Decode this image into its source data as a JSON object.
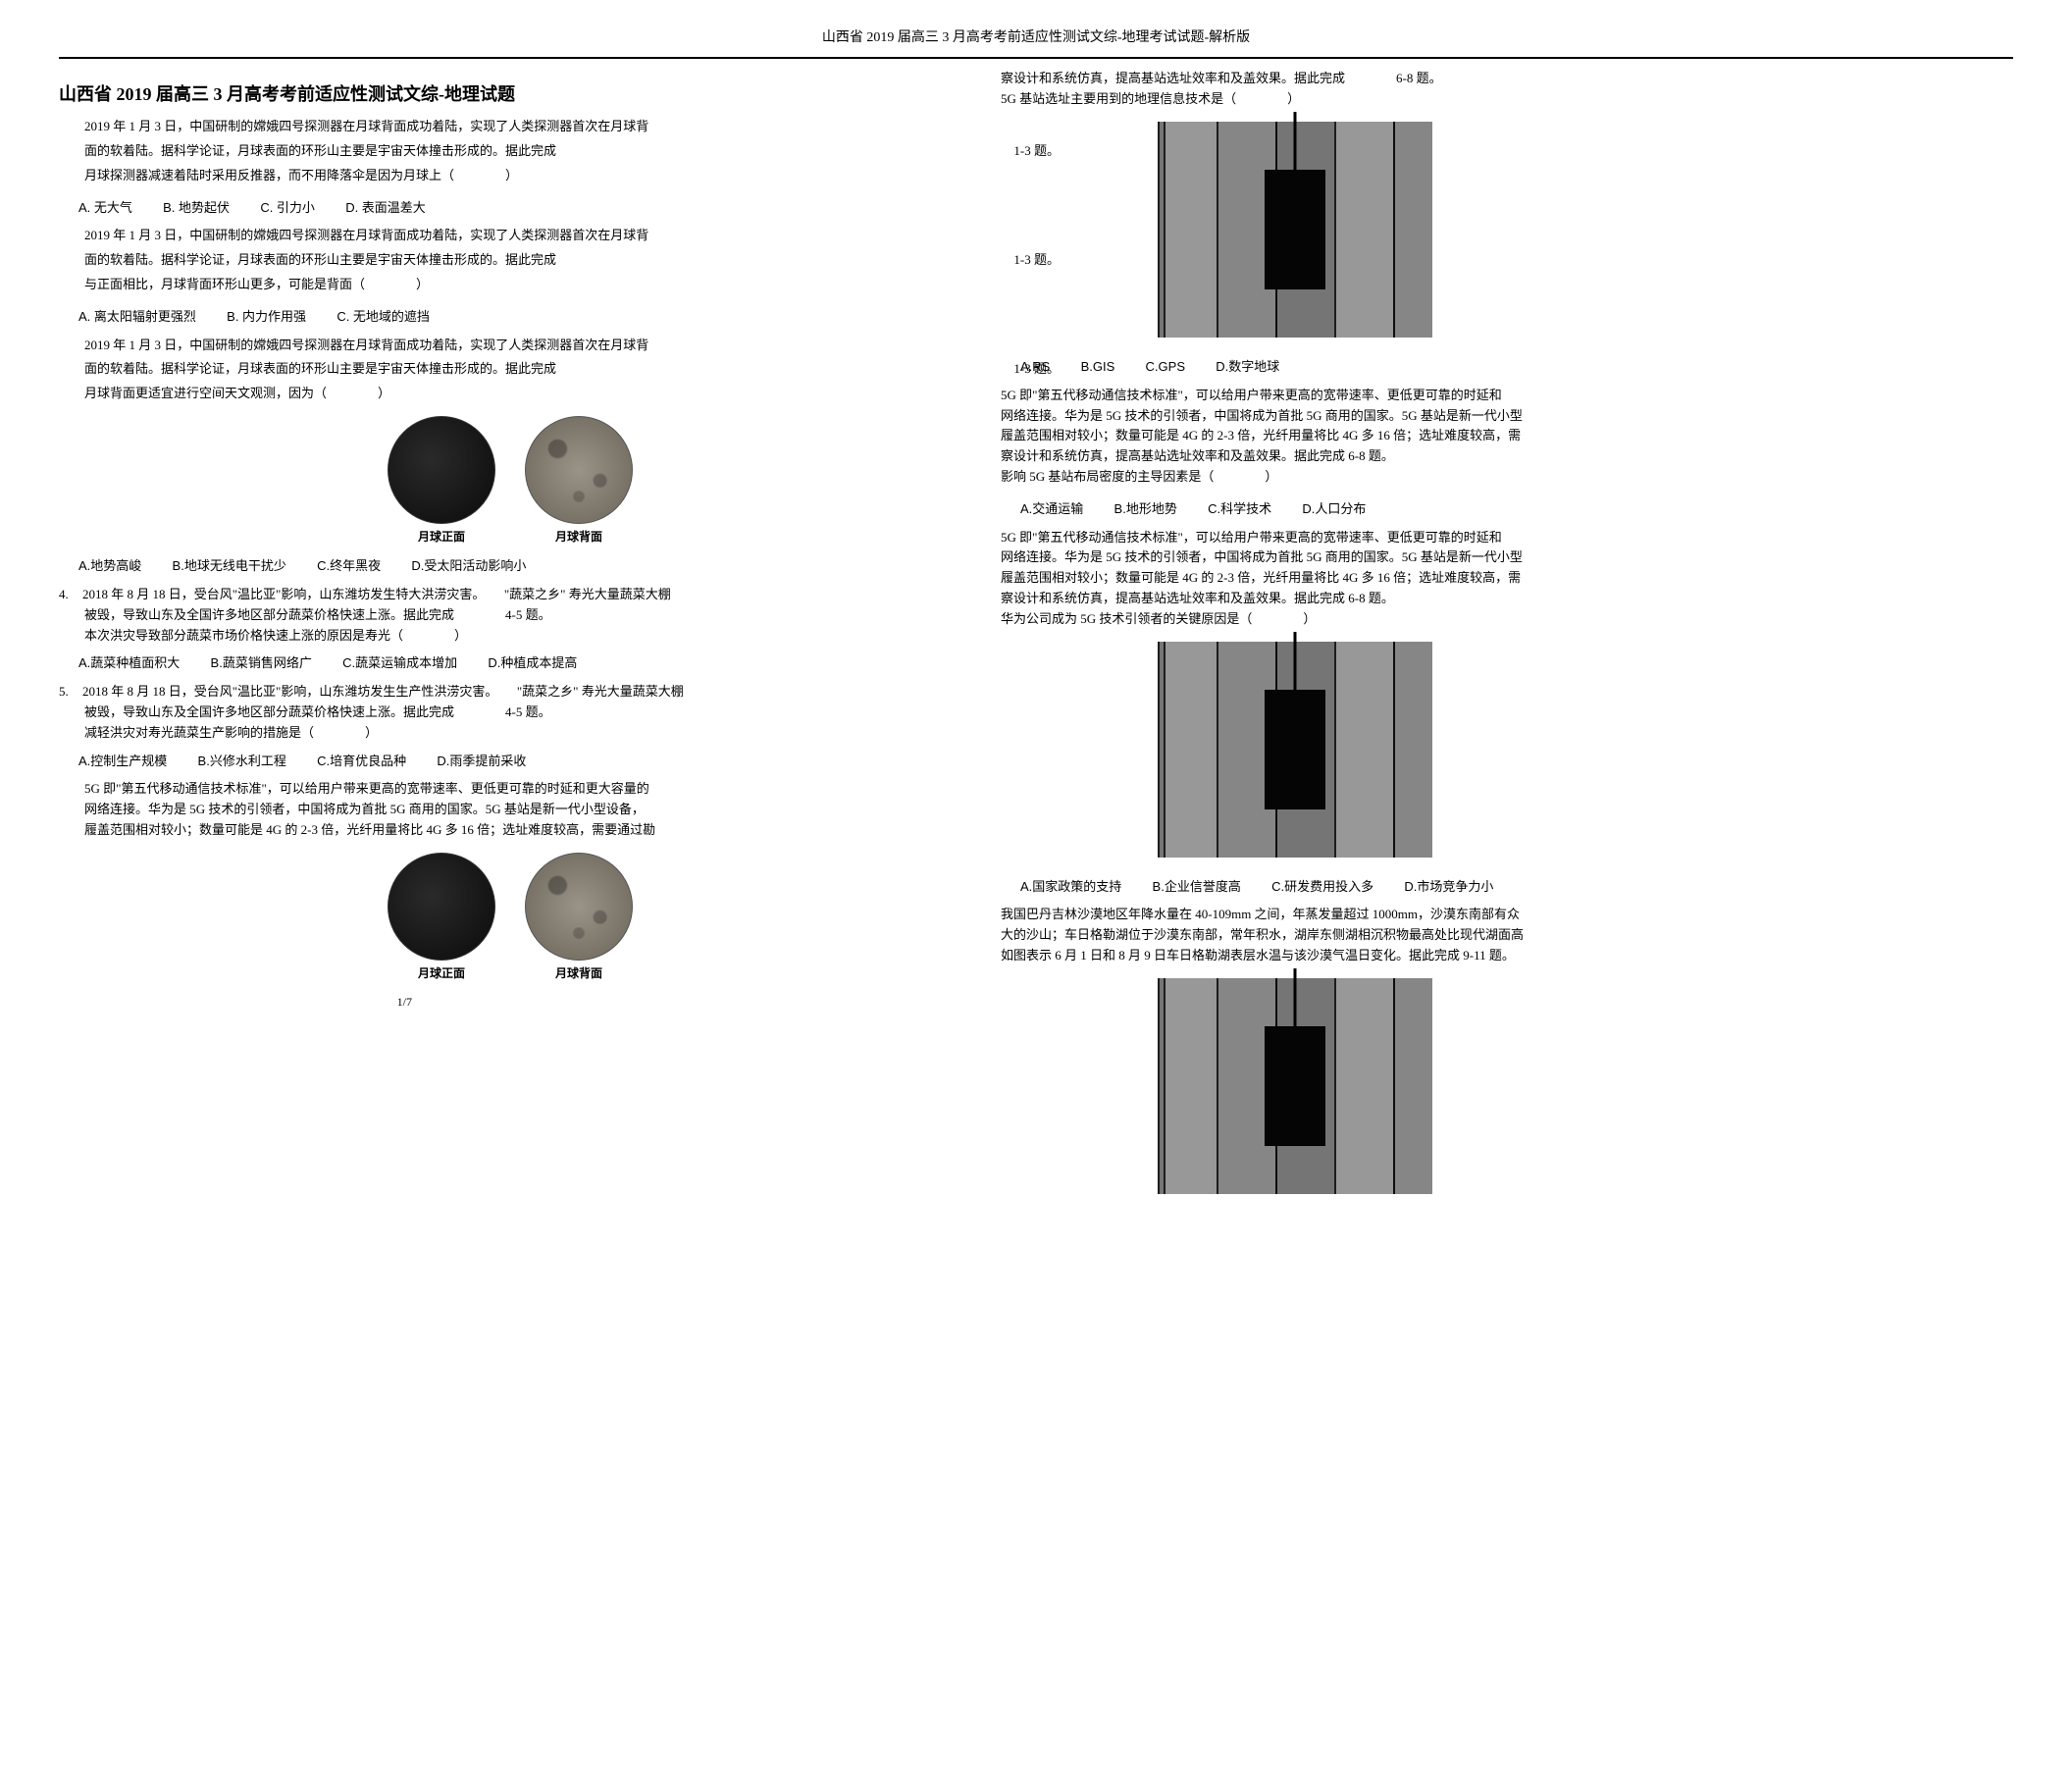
{
  "header": "山西省 2019 届高三 3 月高考考前适应性测试文综-地理考试试题-解析版",
  "title": "山西省 2019 届高三 3 月高考考前适应性测试文综-地理试题",
  "intro": {
    "line1": "2019 年 1 月 3 日，中国研制的嫦娥四号探测器在月球背面成功着陆，实现了人类探测器首次在月球背",
    "line2": "面的软着陆。据科学论证，月球表面的环形山主要是宇宙天体撞击形成的。据此完成",
    "line3": "月球探测器减速着陆时采用反推器，而不用降落伞是因为月球上（　　　　）",
    "range": "1-3 题。"
  },
  "q1opts": {
    "a": "A. 无大气",
    "b": "B. 地势起伏",
    "c": "C. 引力小",
    "d": "D. 表面温差大"
  },
  "q2": {
    "line1": "2019 年 1 月 3 日，中国研制的嫦娥四号探测器在月球背面成功着陆，实现了人类探测器首次在月球背",
    "line2": "面的软着陆。据科学论证，月球表面的环形山主要是宇宙天体撞击形成的。据此完成",
    "line3": "与正面相比，月球背面环形山更多，可能是背面（　　　　）",
    "range": "1-3 题。"
  },
  "q2opts": {
    "a": "A. 离太阳辐射更强烈",
    "b": "B. 内力作用强",
    "c": "C. 无地域的遮挡"
  },
  "q3": {
    "line1": "2019 年 1 月 3 日，中国研制的嫦娥四号探测器在月球背面成功着陆，实现了人类探测器首次在月球背",
    "line2": "面的软着陆。据科学论证，月球表面的环形山主要是宇宙天体撞击形成的。据此完成",
    "line3": "月球背面更适宜进行空间天文观测，因为（　　　　）",
    "range": "1-3 题。"
  },
  "q3opts": {
    "a": "A.地势高峻",
    "b": "B.地球无线电干扰少",
    "c": "C.终年黑夜",
    "d": "D.受太阳活动影响小"
  },
  "moon": {
    "front": "月球正面",
    "back": "月球背面"
  },
  "q4": {
    "n": "4.",
    "t1": "2018 年 8 月 18 日，受台风\"温比亚\"影响，山东潍坊发生特大洪涝灾害。　　\"蔬菜之乡\" 寿光大量蔬菜大棚",
    "t2": "被毁，导致山东及全国许多地区部分蔬菜价格快速上涨。据此完成　　　　4-5 题。",
    "t3": "本次洪灾导致部分蔬菜市场价格快速上涨的原因是寿光（　　　　）"
  },
  "q4opts": {
    "a": "A.蔬菜种植面积大",
    "b": "B.蔬菜销售网络广",
    "c": "C.蔬菜运输成本增加",
    "d": "D.种植成本提高"
  },
  "q5": {
    "n": "5.",
    "t1": "2018 年 8 月 18 日，受台风\"温比亚\"影响，山东潍坊发生生产性洪涝灾害。　　\"蔬菜之乡\" 寿光大量蔬菜大棚",
    "t2": "被毁，导致山东及全国许多地区部分蔬菜价格快速上涨。据此完成　　　　4-5 题。",
    "t3": "减轻洪灾对寿光蔬菜生产影响的措施是（　　　　）"
  },
  "q5opts": {
    "a": "A.控制生产规模",
    "b": "B.兴修水利工程",
    "c": "C.培育优良品种",
    "d": "D.雨季提前采收"
  },
  "fiveg": {
    "p1": "5G 即\"第五代移动通信技术标准\"，可以给用户带来更高的宽带速率、更低更可靠的时延和更大容量的",
    "p2": "网络连接。华为是 5G 技术的引领者，中国将成为首批 5G 商用的国家。5G 基站是新一代小型设备，",
    "p3": "履盖范围相对较小；数量可能是 4G 的 2-3 倍，光纤用量将比 4G 多 16 倍；选址难度较高，需要通过勘"
  },
  "pg": "1/7",
  "r1": {
    "l1": "察设计和系统仿真，提高基站选址效率和及盖效果。据此完成　　　　6-8 题。",
    "l2": "5G 基站选址主要用到的地理信息技术是（　　　　）"
  },
  "r1opts": {
    "a": "A.RS",
    "b": "B.GIS",
    "c": "C.GPS",
    "d": "D.数字地球"
  },
  "r2": {
    "l1": "5G 即\"第五代移动通信技术标准\"，可以给用户带来更高的宽带速率、更低更可靠的时延和",
    "l2": "网络连接。华为是 5G 技术的引领者，中国将成为首批 5G 商用的国家。5G 基站是新一代小型",
    "l3": "履盖范围相对较小；数量可能是 4G 的 2-3 倍，光纤用量将比 4G 多 16 倍；选址难度较高，需",
    "l4": "察设计和系统仿真，提高基站选址效率和及盖效果。据此完成 6-8 题。",
    "l5": "影响 5G 基站布局密度的主导因素是（　　　　）"
  },
  "r2opts": {
    "a": "A.交通运输",
    "b": "B.地形地势",
    "c": "C.科学技术",
    "d": "D.人口分布"
  },
  "r3": {
    "l1": "5G 即\"第五代移动通信技术标准\"，可以给用户带来更高的宽带速率、更低更可靠的时延和",
    "l2": "网络连接。华为是 5G 技术的引领者，中国将成为首批 5G 商用的国家。5G 基站是新一代小型",
    "l3": "履盖范围相对较小；数量可能是 4G 的 2-3 倍，光纤用量将比 4G 多 16 倍；选址难度较高，需",
    "l4": "察设计和系统仿真，提高基站选址效率和及盖效果。据此完成 6-8 题。",
    "l5": "华为公司成为 5G 技术引领者的关键原因是（　　　　）"
  },
  "r3opts": {
    "a": "A.国家政策的支持",
    "b": "B.企业信誉度高",
    "c": "C.研发费用投入多",
    "d": "D.市场竞争力小"
  },
  "r4": {
    "l1": "我国巴丹吉林沙漠地区年降水量在 40-109mm 之间，年蒸发量超过 1000mm，沙漠东南部有众",
    "l2": "大的沙山；车日格勒湖位于沙漠东南部，常年积水，湖岸东侧湖相沉积物最高处比现代湖面高",
    "l3": "如图表示 6 月 1 日和 8 月 9 日车日格勒湖表层水温与该沙漠气温日变化。据此完成 9-11 题。"
  }
}
